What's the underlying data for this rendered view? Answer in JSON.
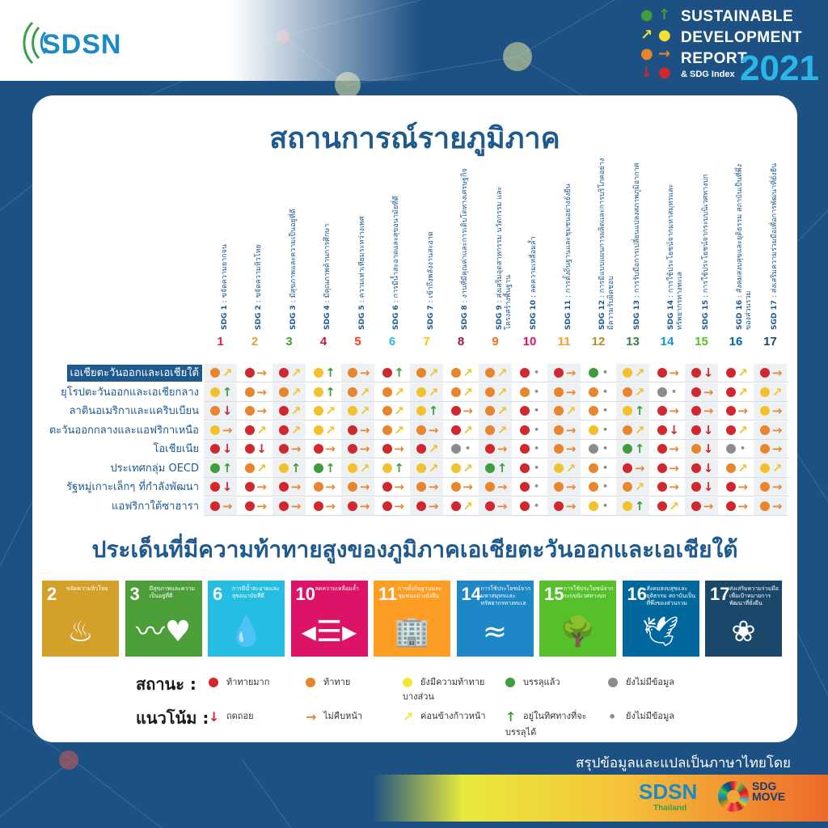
{
  "header": {
    "org_logo": "SDSN",
    "report": {
      "line1": "SUSTAINABLE",
      "line2": "DEVELOPMENT",
      "line3": "REPORT",
      "line4": "& SDG Index",
      "year": "2021"
    }
  },
  "title": "สถานการณ์รายภูมิภาค",
  "columns": [
    {
      "num": "1",
      "prefix": "SDG 1",
      "label": "ขจัดความยากจน",
      "color": "#E5243B"
    },
    {
      "num": "2",
      "prefix": "SDG 2",
      "label": "ขจัดความหิวโหย",
      "color": "#DDA63A"
    },
    {
      "num": "3",
      "prefix": "SDG 3",
      "label": "มีสุขภาพและความเป็นอยู่ที่ดี",
      "color": "#4C9F38"
    },
    {
      "num": "4",
      "prefix": "SDG 4",
      "label": "มีคุณภาพด้านการศึกษา",
      "color": "#C5192D"
    },
    {
      "num": "5",
      "prefix": "SDG 5",
      "label": "ความเท่าเทียมระหว่างเพศ",
      "color": "#FF3A21"
    },
    {
      "num": "6",
      "prefix": "SDG 6",
      "label": "การมีน้ำสะอาดและสุขอนามัยที่ดี",
      "color": "#26BDE2"
    },
    {
      "num": "7",
      "prefix": "SDG 7",
      "label": "เข้าถึงพลังงานสะอาด",
      "color": "#FCC30B"
    },
    {
      "num": "8",
      "prefix": "SDG 8",
      "label": "งานที่มีคุณค่าและการเติบโตทางเศรษฐกิจ",
      "color": "#A21942"
    },
    {
      "num": "9",
      "prefix": "SDG 9",
      "label": "ส่งเสริมอุตสาหกรรม นวัตกรรม และโครงสร้างพื้นฐาน",
      "color": "#FD6925"
    },
    {
      "num": "10",
      "prefix": "SDG 10",
      "label": "ลดความเหลื่อมล้ำ",
      "color": "#DD1367"
    },
    {
      "num": "11",
      "prefix": "SDG 11",
      "label": "การตั้งถิ่นฐานและชุมชนอย่างยั่งยืน",
      "color": "#FD9D24"
    },
    {
      "num": "12",
      "prefix": "SDG 12",
      "label": "การมีแบบแผนการผลิตและการบริโภคอย่างมีความรับผิดชอบ",
      "color": "#BF8B2E"
    },
    {
      "num": "13",
      "prefix": "SDG 13",
      "label": "การรับมือการเปลี่ยนแปลงสภาพภูมิอากาศ",
      "color": "#3F7E44"
    },
    {
      "num": "14",
      "prefix": "SDG 14",
      "label": "การใช้ประโยชน์จากมหาสมุทรและทรัพยากรทางทะเล",
      "color": "#0A97D9"
    },
    {
      "num": "15",
      "prefix": "SDG 15",
      "label": "การใช้ประโยชน์จากระบบนิเวศทางบก",
      "color": "#56C02B"
    },
    {
      "num": "16",
      "prefix": "SGD 16",
      "label": "สังคมสงบสุขและยุติธรรม สถาบันเป็นที่พึ่งของส่วนรวม",
      "color": "#00689D"
    },
    {
      "num": "17",
      "prefix": "SGD 17",
      "label": "ส่งเสริมความร่วมมือเพื่อการพัฒนาที่ยั่งยืน",
      "color": "#19486A"
    }
  ],
  "status_colors": {
    "r": "#d0282e",
    "o": "#e9852f",
    "y": "#f2c12e",
    "g": "#3f9e3b",
    "x": "#8c8c8c"
  },
  "trend_symbols": {
    "d": {
      "glyph": "↓",
      "color": "#d0282e"
    },
    "f": {
      "glyph": "→",
      "color": "#e9852f"
    },
    "m": {
      "glyph": "↗",
      "color": "#f2c12e"
    },
    "u": {
      "glyph": "↑",
      "color": "#3f9e3b"
    },
    "n": {
      "glyph": "•",
      "color": "#8c8c8c"
    }
  },
  "regions": [
    {
      "label": "เอเชียตะวันออกและเอเชียใต้",
      "highlight": true,
      "cells": [
        "om",
        "rf",
        "rm",
        "yu",
        "of",
        "ru",
        "om",
        "om",
        "om",
        "rn",
        "rf",
        "gn",
        "ym",
        "rf",
        "rd",
        "rm",
        "rf"
      ]
    },
    {
      "label": "ยุโรปตะวันออกและเอเชียกลาง",
      "cells": [
        "yu",
        "of",
        "om",
        "yu",
        "om",
        "om",
        "ym",
        "om",
        "om",
        "on",
        "of",
        "on",
        "om",
        "xn",
        "rf",
        "rm",
        "ym"
      ]
    },
    {
      "label": "ลาตินอเมริกาและแคริบเบียน",
      "cells": [
        "od",
        "of",
        "rm",
        "ym",
        "ym",
        "om",
        "yu",
        "rf",
        "om",
        "rn",
        "om",
        "on",
        "yu",
        "rf",
        "rf",
        "rf",
        "yf"
      ]
    },
    {
      "label": "ตะวันออกกลางและแอฟริกาเหนือ",
      "cells": [
        "yf",
        "rm",
        "rm",
        "ym",
        "rf",
        "om",
        "of",
        "rm",
        "om",
        "rn",
        "of",
        "yn",
        "om",
        "rd",
        "rd",
        "rm",
        "of"
      ]
    },
    {
      "label": "โอเชียเนีย",
      "cells": [
        "rd",
        "rd",
        "rf",
        "rf",
        "rf",
        "rf",
        "rm",
        "xn",
        "rf",
        "rn",
        "of",
        "xn",
        "gu",
        "rf",
        "od",
        "xn",
        "of"
      ]
    },
    {
      "label": "ประเทศกลุ่ม OECD",
      "cells": [
        "gu",
        "om",
        "yu",
        "gu",
        "ym",
        "yu",
        "ym",
        "ym",
        "gu",
        "rn",
        "ym",
        "on",
        "rf",
        "rf",
        "rd",
        "om",
        "ym"
      ]
    },
    {
      "label": "รัฐหมู่เกาะเล็กๆ ที่กำลังพัฒนา",
      "cells": [
        "rd",
        "rf",
        "rf",
        "of",
        "of",
        "rf",
        "of",
        "of",
        "of",
        "rn",
        "of",
        "on",
        "om",
        "rf",
        "rd",
        "rf",
        "of"
      ]
    },
    {
      "label": "แอฟริกาใต้ซาฮารา",
      "cells": [
        "rf",
        "rf",
        "rf",
        "rf",
        "rf",
        "rf",
        "rf",
        "rm",
        "rf",
        "rn",
        "rf",
        "yn",
        "yu",
        "rm",
        "rf",
        "rf",
        "of"
      ]
    }
  ],
  "subtitle": "ประเด็นที่มีความท้าทายสูงของภูมิภาคเอเชียตะวันออกและเอเชียใต้",
  "tiles": [
    {
      "num": "2",
      "label": "ขจัดความหิวโหย",
      "color": "#D3A029",
      "icon": "bowl-icon",
      "glyph": "♨"
    },
    {
      "num": "3",
      "label": "มีสุขภาพและความเป็นอยู่ที่ดี",
      "color": "#4C9F38",
      "icon": "heartbeat-icon",
      "glyph": "〰♥"
    },
    {
      "num": "6",
      "label": "การมีน้ำสะอาดและสุขอนามัยที่ดี",
      "color": "#26BDE2",
      "icon": "water-icon",
      "glyph": "💧"
    },
    {
      "num": "10",
      "label": "ลดความเหลื่อมล้ำ",
      "color": "#DD1367",
      "icon": "equality-icon",
      "glyph": "◂☰▸"
    },
    {
      "num": "11",
      "label": "การตั้งถิ่นฐานและชุมชนอย่างยั่งยืน",
      "color": "#FD9D24",
      "icon": "city-icon",
      "glyph": "🏢"
    },
    {
      "num": "14",
      "label": "การใช้ประโยชน์จากมหาสมุทรและทรัพยากรทางทะเล",
      "color": "#1E87C8",
      "icon": "fish-icon",
      "glyph": "≈"
    },
    {
      "num": "15",
      "label": "การใช้ประโยชน์จากระบบนิเวศทางบก",
      "color": "#56C02B",
      "icon": "tree-icon",
      "glyph": "🌳"
    },
    {
      "num": "16",
      "label": "สังคมสงบสุขและยุติธรรม สถาบันเป็นที่พึ่งของส่วนรวม",
      "color": "#00689D",
      "icon": "dove-icon",
      "glyph": "🕊"
    },
    {
      "num": "17",
      "label": "ส่งเสริมความร่วมมือเพื่อเป้าหมายการพัฒนาที่ยั่งยืน",
      "color": "#19486A",
      "icon": "rings-icon",
      "glyph": "❀"
    }
  ],
  "legend": {
    "status_title": "สถานะ :",
    "status": [
      {
        "label": "ท้าทายมาก",
        "color": "#d0282e"
      },
      {
        "label": "ท้าทาย",
        "color": "#e9852f"
      },
      {
        "label": "ยังมีความท้าทายบางส่วน",
        "color": "#f5e43a"
      },
      {
        "label": "บรรลุแล้ว",
        "color": "#3f9e3b"
      },
      {
        "label": "ยังไม่มีข้อมูล",
        "color": "#8c8c8c"
      }
    ],
    "trend_title": "แนวโน้ม :",
    "trend": [
      {
        "label": "ถดถอย",
        "glyph": "↓",
        "color": "#d0282e"
      },
      {
        "label": "ไม่คืบหน้า",
        "glyph": "→",
        "color": "#e9852f"
      },
      {
        "label": "ค่อนข้างก้าวหน้า",
        "glyph": "↗",
        "color": "#f5e43a"
      },
      {
        "label": "อยู่ในทิศทางที่จะบรรลุได้",
        "glyph": "↑",
        "color": "#3f9e3b"
      },
      {
        "label": "ยังไม่มีข้อมูล",
        "glyph": "•",
        "color": "#8c8c8c"
      }
    ]
  },
  "footer": {
    "credit": "สรุปข้อมูลและแปลเป็นภาษาไทยโดย",
    "logo1": "SDSN",
    "logo1_sub": "Thailand",
    "logo2": "SDG MOVE"
  }
}
